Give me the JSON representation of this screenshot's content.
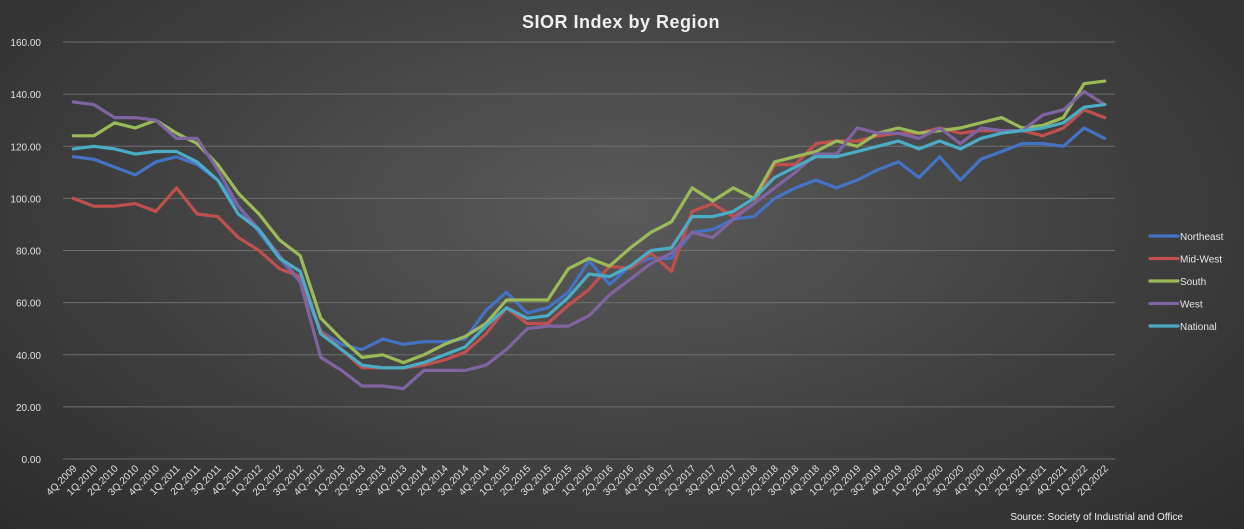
{
  "chart_data": {
    "type": "line",
    "title": "SIOR Index  by Region",
    "source": "Source: Society of Industrial and Office",
    "ylim": [
      0,
      160
    ],
    "yticks": [
      "0.00",
      "20.00",
      "40.00",
      "60.00",
      "80.00",
      "100.00",
      "120.00",
      "140.00",
      "160.00"
    ],
    "grid": true,
    "legend_position": "right",
    "categories": [
      "4Q.2009",
      "1Q.2010",
      "2Q.2010",
      "3Q.2010",
      "4Q.2010",
      "1Q.2011",
      "2Q.2011",
      "3Q.2011",
      "4Q.2011",
      "1Q.2012",
      "2Q.2012",
      "3Q.2012",
      "4Q.2012",
      "1Q.2013",
      "2Q.2013",
      "3Q.2013",
      "4Q.2013",
      "1Q.2014",
      "2Q.2014",
      "3Q.2014",
      "4Q.2014",
      "1Q.2015",
      "2Q.2015",
      "3Q.2015",
      "4Q.2015",
      "1Q.2016",
      "2Q.2016",
      "3Q.2016",
      "4Q.2016",
      "1Q.2017",
      "2Q.2017",
      "3Q.2017",
      "4Q.2017",
      "1Q.2018",
      "2Q.2018",
      "3Q.2018",
      "4Q.2018",
      "1Q.2019",
      "2Q.2019",
      "3Q.2019",
      "4Q.2019",
      "1Q.2020",
      "2Q.2020",
      "3Q.2020",
      "4Q.2020",
      "1Q.2021",
      "2Q.2021",
      "3Q.2021",
      "4Q.2021",
      "1Q.2022",
      "2Q.2022"
    ],
    "series": [
      {
        "name": "Northeast",
        "color": "#4472c4",
        "values": [
          116,
          115,
          112,
          109,
          114,
          116,
          113,
          107,
          97,
          87,
          77,
          68,
          49,
          44,
          42,
          46,
          44,
          45,
          45,
          46,
          57,
          64,
          56,
          58,
          64,
          76,
          67,
          74,
          77,
          77,
          87,
          88,
          92,
          93,
          100,
          104,
          107,
          104,
          107,
          111,
          114,
          108,
          116,
          107,
          115,
          118,
          121,
          121,
          120,
          127,
          123
        ]
      },
      {
        "name": "Mid-West",
        "color": "#c0504d",
        "values": [
          100,
          97,
          97,
          98,
          95,
          104,
          94,
          93,
          85,
          80,
          73,
          70,
          49,
          42,
          35,
          35,
          35,
          36,
          38,
          41,
          48,
          58,
          52,
          52,
          59,
          65,
          74,
          73,
          79,
          72,
          95,
          98,
          93,
          98,
          113,
          113,
          121,
          122,
          122,
          124,
          125,
          125,
          127,
          125,
          126,
          126,
          126,
          124,
          127,
          134,
          131
        ]
      },
      {
        "name": "South",
        "color": "#9bbb59",
        "values": [
          124,
          124,
          129,
          127,
          130,
          125,
          121,
          113,
          102,
          94,
          84,
          78,
          54,
          46,
          39,
          40,
          37,
          40,
          44,
          47,
          52,
          61,
          61,
          61,
          73,
          77,
          74,
          81,
          87,
          91,
          104,
          99,
          104,
          100,
          114,
          116,
          118,
          122,
          120,
          125,
          127,
          125,
          126,
          127,
          129,
          131,
          127,
          128,
          131,
          144,
          145
        ]
      },
      {
        "name": "West",
        "color": "#8064a2",
        "values": [
          137,
          136,
          131,
          131,
          130,
          123,
          123,
          111,
          97,
          88,
          78,
          68,
          39,
          34,
          28,
          28,
          27,
          34,
          34,
          34,
          36,
          42,
          50,
          51,
          51,
          55,
          63,
          69,
          75,
          79,
          87,
          85,
          92,
          98,
          104,
          110,
          117,
          117,
          127,
          125,
          125,
          123,
          127,
          121,
          127,
          126,
          126,
          132,
          134,
          141,
          136
        ]
      },
      {
        "name": "National",
        "color": "#4bacc6",
        "values": [
          119,
          120,
          119,
          117,
          118,
          118,
          114,
          107,
          94,
          88,
          77,
          72,
          48,
          42,
          36,
          35,
          35,
          37,
          40,
          43,
          51,
          58,
          54,
          55,
          62,
          71,
          70,
          74,
          80,
          81,
          93,
          93,
          95,
          100,
          108,
          112,
          116,
          116,
          118,
          120,
          122,
          119,
          122,
          119,
          123,
          125,
          126,
          127,
          129,
          135,
          136
        ]
      }
    ]
  }
}
